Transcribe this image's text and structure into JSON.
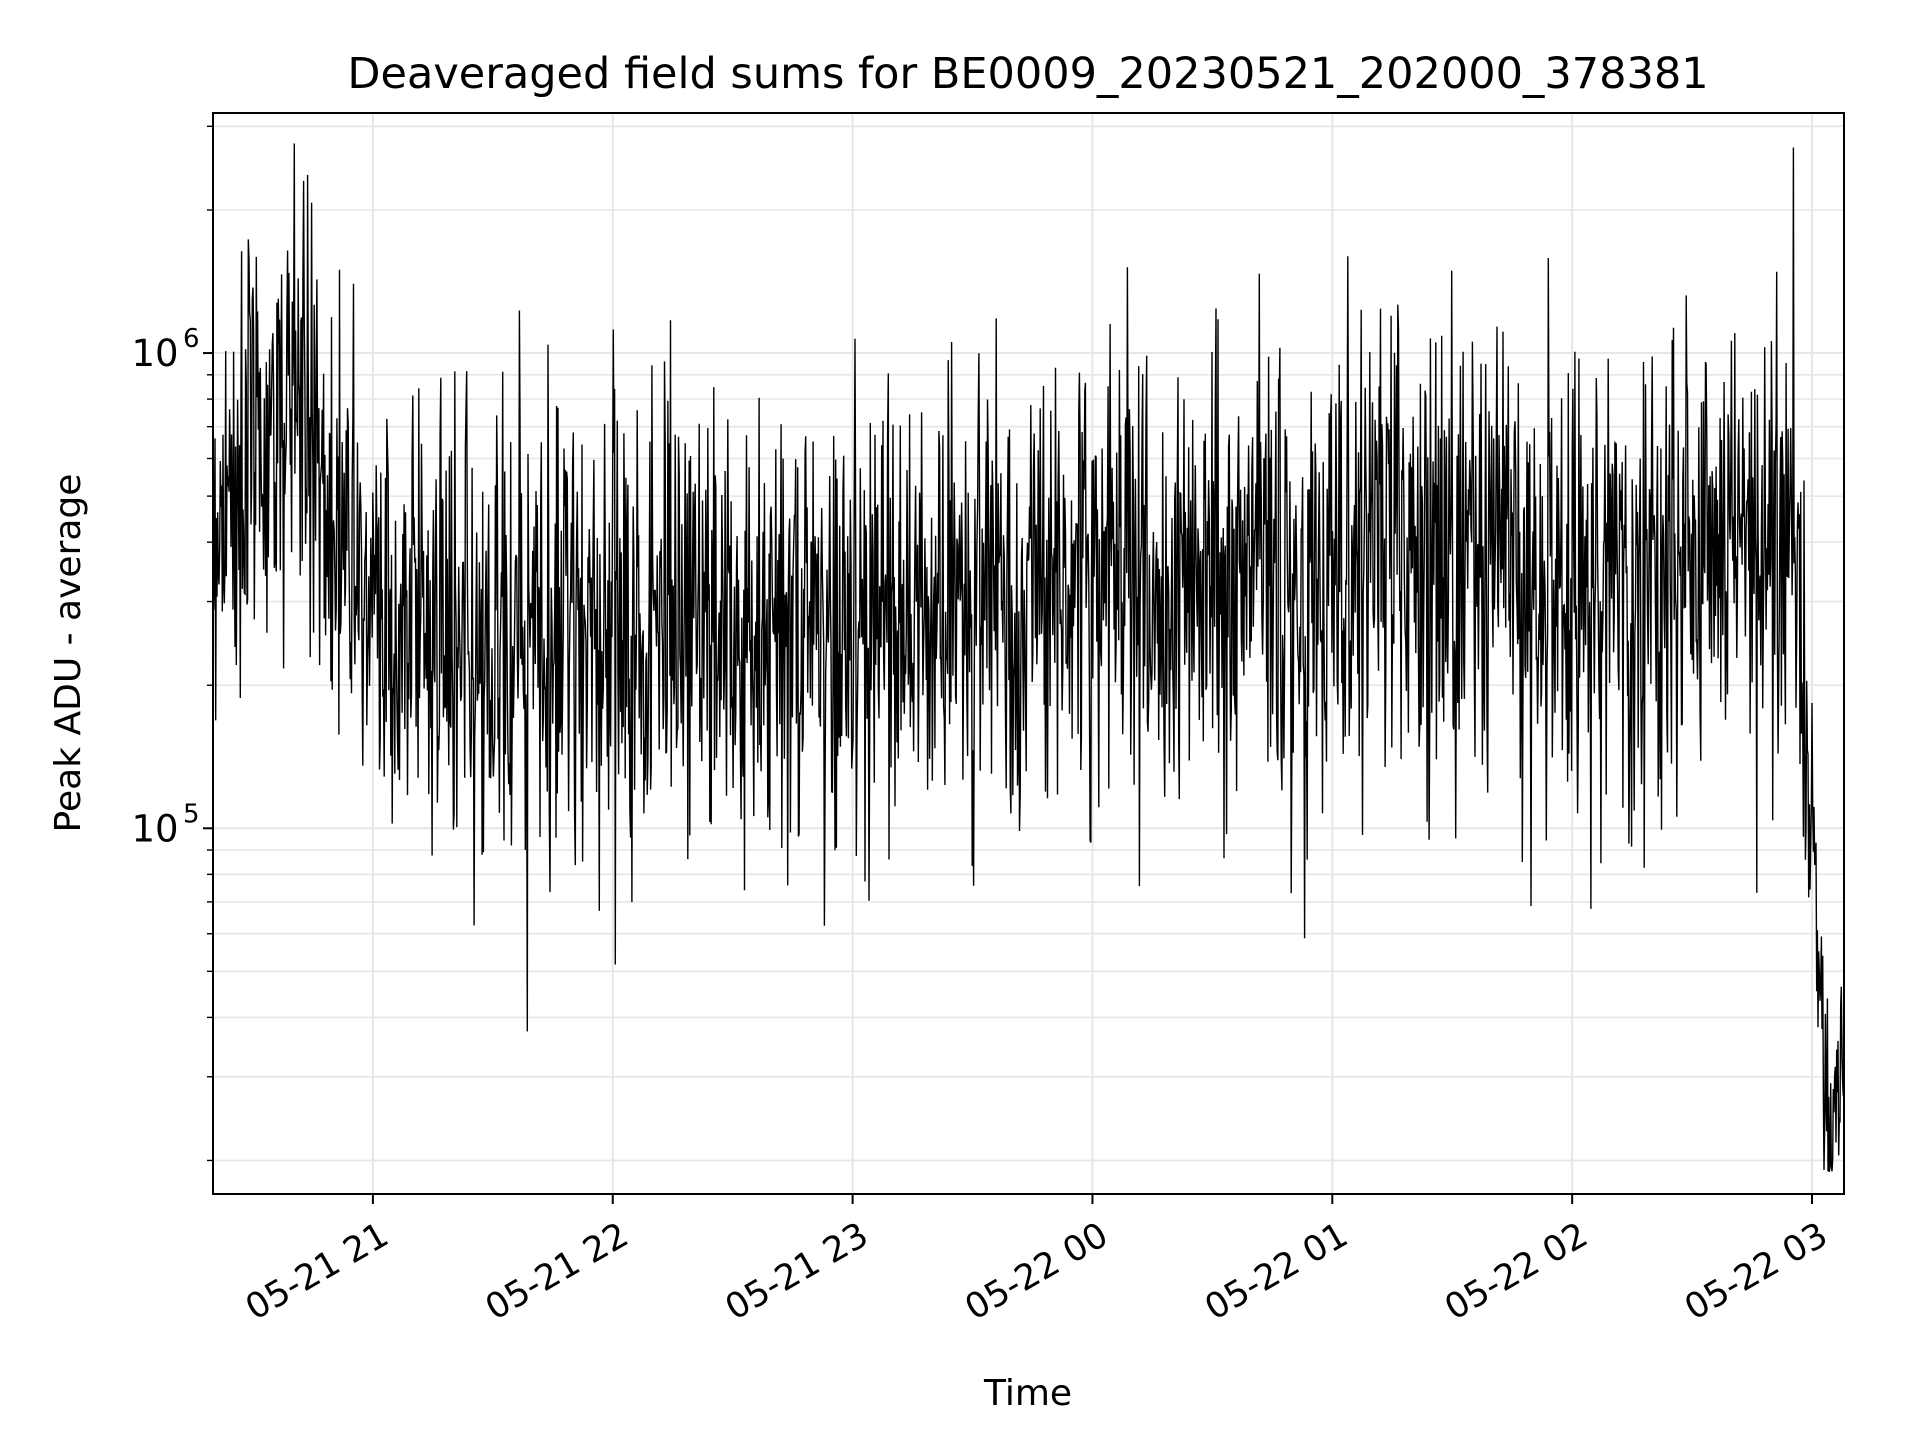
{
  "chart_data": {
    "type": "line",
    "title": "Deaveraged field sums for BE0009_20230521_202000_378381",
    "xlabel": "Time",
    "ylabel": "Peak ADU - average",
    "yscale": "log",
    "ylim": [
      17000,
      3200000
    ],
    "xlim": [
      "2023-05-21 20:20",
      "2023-05-22 03:08"
    ],
    "grid": true,
    "line_color": "#000000",
    "grid_color": "#e6e6e6",
    "x_ticks": [
      {
        "value": "2023-05-21 21:00",
        "label": "05-21 21"
      },
      {
        "value": "2023-05-21 22:00",
        "label": "05-21 22"
      },
      {
        "value": "2023-05-21 23:00",
        "label": "05-21 23"
      },
      {
        "value": "2023-05-22 00:00",
        "label": "05-22 00"
      },
      {
        "value": "2023-05-22 01:00",
        "label": "05-22 01"
      },
      {
        "value": "2023-05-22 02:00",
        "label": "05-22 02"
      },
      {
        "value": "2023-05-22 03:00",
        "label": "05-22 03"
      }
    ],
    "y_ticks": [
      {
        "value": 100000,
        "base": "10",
        "exp": "5"
      },
      {
        "value": 1000000,
        "base": "10",
        "exp": "6"
      }
    ],
    "series": [
      {
        "x_start": "2023-05-21 20:20",
        "x_end": "2023-05-22 03:08",
        "sample_interval_seconds": 10,
        "points_approx": 2450,
        "values_sample": [
          {
            "x": "2023-05-21 20:20",
            "y": 450000
          },
          {
            "x": "2023-05-21 20:30",
            "y": 600000
          },
          {
            "x": "2023-05-21 20:40",
            "y": 800000
          },
          {
            "x": "2023-05-21 20:50",
            "y": 400000
          },
          {
            "x": "2023-05-21 21:00",
            "y": 280000
          },
          {
            "x": "2023-05-21 21:30",
            "y": 250000
          },
          {
            "x": "2023-05-21 22:00",
            "y": 280000
          },
          {
            "x": "2023-05-21 22:30",
            "y": 260000
          },
          {
            "x": "2023-05-21 23:00",
            "y": 280000
          },
          {
            "x": "2023-05-21 23:30",
            "y": 300000
          },
          {
            "x": "2023-05-22 00:00",
            "y": 330000
          },
          {
            "x": "2023-05-22 00:30",
            "y": 320000
          },
          {
            "x": "2023-05-22 01:00",
            "y": 340000
          },
          {
            "x": "2023-05-22 01:30",
            "y": 360000
          },
          {
            "x": "2023-05-22 02:00",
            "y": 350000
          },
          {
            "x": "2023-05-22 02:30",
            "y": 370000
          },
          {
            "x": "2023-05-22 02:55",
            "y": 420000
          },
          {
            "x": "2023-05-22 03:00",
            "y": 110000
          },
          {
            "x": "2023-05-22 03:02",
            "y": 60000
          },
          {
            "x": "2023-05-22 03:04",
            "y": 20000
          },
          {
            "x": "2023-05-22 03:08",
            "y": 40000
          }
        ]
      }
    ]
  }
}
